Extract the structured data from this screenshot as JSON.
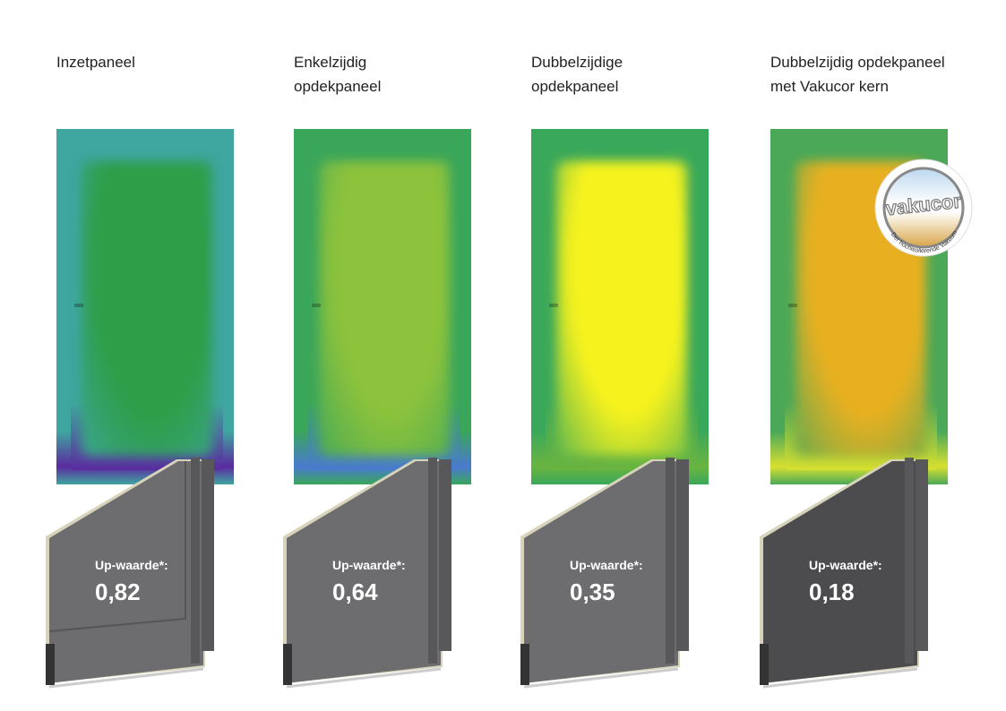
{
  "columns": [
    {
      "title": "Inzetpaneel",
      "up_label": "Up-waarde*:",
      "up_value": "0,82",
      "thermal_colors": {
        "edge": "#3fa6a0",
        "center": "#2e9e48",
        "bottom": "#5b2aa0"
      }
    },
    {
      "title": "Enkelzijdig\nopdekpaneel",
      "up_label": "Up-waarde*:",
      "up_value": "0,64",
      "thermal_colors": {
        "edge": "#3aa65a",
        "center": "#8cc23c",
        "bottom": "#4a7ad0"
      }
    },
    {
      "title": "Dubbelzijdige\nopdekpaneel",
      "up_label": "Up-waarde*:",
      "up_value": "0,35",
      "thermal_colors": {
        "edge": "#3aa85a",
        "center": "#f6f21e",
        "bottom": "#6ab440"
      }
    },
    {
      "title": "Dubbelzijdig opdekpaneel\nmet Vakucor kern",
      "up_label": "Up-waarde*:",
      "up_value": "0,18",
      "thermal_colors": {
        "edge": "#4aa858",
        "center": "#e8b020",
        "bottom": "#d8e030"
      }
    }
  ],
  "badge": {
    "brand": "vakucor",
    "tagline": "Der hochisolierende Vakuumkern"
  },
  "colors": {
    "panel": "#6d6d6f",
    "panel_dark": "#58585a",
    "foam": "#d8d4bc"
  }
}
